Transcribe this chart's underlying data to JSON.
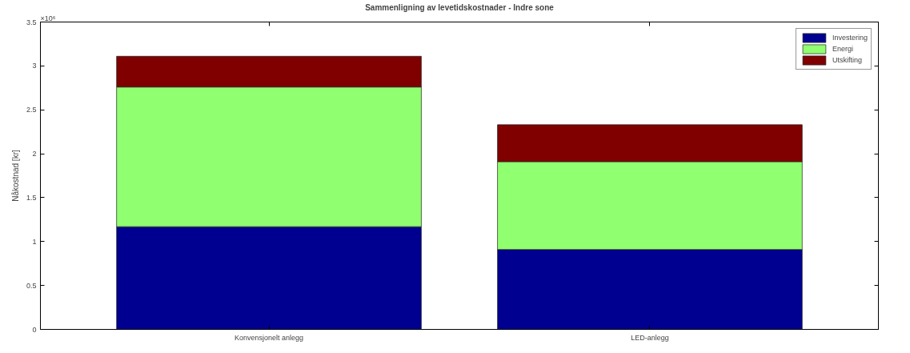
{
  "chart_data": {
    "type": "bar",
    "stacked": true,
    "title": "Sammenligning av levetidskostnader - Indre sone",
    "ylabel": "Nåkostnad [kr]",
    "categories": [
      "Konvensjonelt anlegg",
      "LED-anlegg"
    ],
    "series": [
      {
        "name": "Investering",
        "color": "#000090",
        "values": [
          1.17,
          0.91
        ]
      },
      {
        "name": "Energi",
        "color": "#90ff70",
        "values": [
          1.59,
          1.0
        ]
      },
      {
        "name": "Utskifting",
        "color": "#800000",
        "values": [
          0.35,
          0.42
        ]
      }
    ],
    "ylim": [
      0,
      3.5
    ],
    "yticks": [
      0,
      0.5,
      1,
      1.5,
      2,
      2.5,
      3,
      3.5
    ],
    "annotations": [
      "×10⁶"
    ],
    "legend": "top right",
    "grid": false
  }
}
